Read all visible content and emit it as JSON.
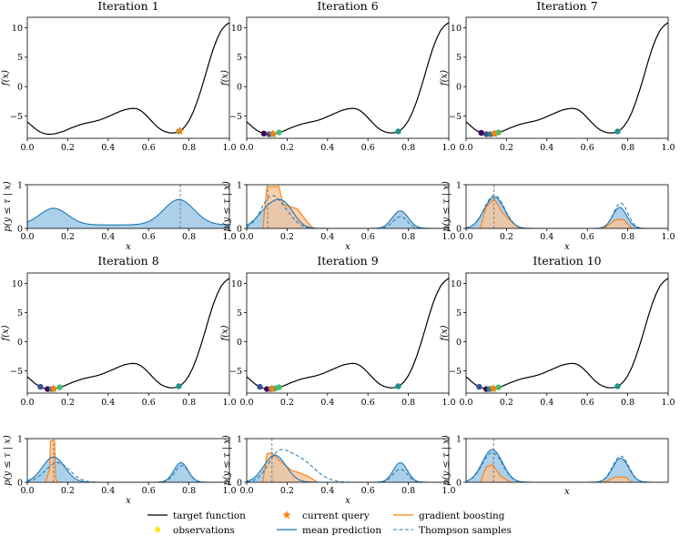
{
  "chart_data": {
    "type": "line",
    "x_range": [
      0.0,
      1.0
    ],
    "x_ticks": [
      "0.0",
      "0.2",
      "0.4",
      "0.6",
      "0.8",
      "1.0"
    ],
    "f_label": "f(x)",
    "f_ticks": [
      "−5",
      "0",
      "5",
      "10"
    ],
    "f_ylim": [
      -8.8,
      11.8
    ],
    "p_label": "p(y ≤ τ | x)",
    "p_ticks": [
      "0",
      "1"
    ],
    "p_ylim": [
      0,
      1
    ],
    "xlabel": "x",
    "target_function": {
      "x": [
        0.0,
        0.02,
        0.04,
        0.06,
        0.08,
        0.1,
        0.12,
        0.14,
        0.16,
        0.18,
        0.2,
        0.22,
        0.24,
        0.26,
        0.28,
        0.3,
        0.32,
        0.34,
        0.36,
        0.38,
        0.4,
        0.42,
        0.44,
        0.46,
        0.48,
        0.5,
        0.52,
        0.54,
        0.56,
        0.58,
        0.6,
        0.62,
        0.64,
        0.66,
        0.68,
        0.7,
        0.72,
        0.74,
        0.76,
        0.78,
        0.8,
        0.82,
        0.84,
        0.86,
        0.88,
        0.9,
        0.92,
        0.94,
        0.96,
        0.98,
        1.0
      ],
      "y": [
        -6.0,
        -6.6,
        -7.2,
        -7.65,
        -7.95,
        -8.1,
        -8.1,
        -8.0,
        -7.8,
        -7.6,
        -7.3,
        -7.0,
        -6.75,
        -6.5,
        -6.3,
        -6.15,
        -6.0,
        -5.85,
        -5.65,
        -5.4,
        -5.1,
        -4.8,
        -4.5,
        -4.2,
        -3.95,
        -3.8,
        -3.7,
        -3.75,
        -4.05,
        -4.6,
        -5.3,
        -6.05,
        -6.75,
        -7.3,
        -7.65,
        -7.85,
        -7.9,
        -7.8,
        -7.45,
        -6.8,
        -5.8,
        -4.4,
        -2.6,
        -0.5,
        1.8,
        4.2,
        6.4,
        8.2,
        9.6,
        10.4,
        10.9
      ]
    },
    "panels": [
      {
        "title": "Iteration 1",
        "observations": [
          0.75
        ],
        "obs_colors": [
          "#43bf71"
        ],
        "current_query": 0.755,
        "query_line": 0.757,
        "mean_prediction": [
          [
            0.13,
            0.07,
            0.38
          ],
          [
            0.75,
            0.075,
            0.58
          ]
        ],
        "mean_base": 0.08,
        "thompson": [],
        "gradient": []
      },
      {
        "title": "Iteration 6",
        "observations": [
          0.085,
          0.11,
          0.13,
          0.16,
          0.75
        ],
        "obs_colors": [
          "#440154",
          "#3b528b",
          "#2a788e",
          "#43bf71",
          "#21918c"
        ],
        "current_query": 0.13,
        "query_line": 0.104,
        "mean_prediction": [
          [
            0.13,
            0.065,
            0.55
          ],
          [
            0.2,
            0.045,
            0.25
          ],
          [
            0.76,
            0.04,
            0.4
          ]
        ],
        "mean_base": 0.0,
        "thompson": [
          [
            0.12,
            0.05,
            0.7
          ],
          [
            0.2,
            0.045,
            0.22
          ],
          [
            0.76,
            0.035,
            0.27
          ]
        ],
        "gradient": [
          [
            0.08,
            0.0
          ],
          [
            0.1,
            0.95
          ],
          [
            0.16,
            0.96
          ],
          [
            0.18,
            0.55
          ],
          [
            0.25,
            0.45
          ],
          [
            0.3,
            0.15
          ],
          [
            0.33,
            0.0
          ]
        ]
      },
      {
        "title": "Iteration 7",
        "observations": [
          0.075,
          0.1,
          0.12,
          0.14,
          0.16,
          0.75
        ],
        "obs_colors": [
          "#440154",
          "#3b528b",
          "#2a788e",
          "#21918c",
          "#43bf71",
          "#21918c"
        ],
        "current_query": 0.14,
        "query_line": 0.138,
        "mean_prediction": [
          [
            0.14,
            0.05,
            0.72
          ],
          [
            0.76,
            0.035,
            0.48
          ]
        ],
        "mean_base": 0.0,
        "thompson": [
          [
            0.14,
            0.05,
            0.76
          ],
          [
            0.765,
            0.035,
            0.58
          ]
        ],
        "gradient": [
          [
            0.07,
            0.0
          ],
          [
            0.1,
            0.5
          ],
          [
            0.14,
            0.68
          ],
          [
            0.18,
            0.35
          ],
          [
            0.25,
            0.05
          ],
          [
            0.28,
            0.0
          ],
          [
            0.68,
            0.0
          ],
          [
            0.74,
            0.2
          ],
          [
            0.78,
            0.2
          ],
          [
            0.82,
            0.0
          ]
        ]
      },
      {
        "title": "Iteration 8",
        "observations": [
          0.065,
          0.1,
          0.12,
          0.13,
          0.16,
          0.75
        ],
        "obs_colors": [
          "#3b528b",
          "#440154",
          "#2a788e",
          "#21918c",
          "#43bf71",
          "#21918c"
        ],
        "current_query": 0.13,
        "query_line": 0.13,
        "mean_prediction": [
          [
            0.13,
            0.055,
            0.58
          ],
          [
            0.76,
            0.035,
            0.45
          ]
        ],
        "mean_base": 0.0,
        "thompson": [
          [
            0.15,
            0.06,
            0.45
          ],
          [
            0.765,
            0.035,
            0.38
          ]
        ],
        "gradient": [
          [
            0.09,
            0.0
          ],
          [
            0.11,
            0.3
          ],
          [
            0.115,
            0.95
          ],
          [
            0.135,
            0.95
          ],
          [
            0.14,
            0.1
          ],
          [
            0.15,
            0.0
          ]
        ]
      },
      {
        "title": "Iteration 9",
        "observations": [
          0.065,
          0.1,
          0.12,
          0.13,
          0.14,
          0.16,
          0.75
        ],
        "obs_colors": [
          "#3b528b",
          "#440154",
          "#2a788e",
          "#21918c",
          "#35b779",
          "#43bf71",
          "#21918c"
        ],
        "current_query": 0.125,
        "query_line": 0.125,
        "mean_prediction": [
          [
            0.14,
            0.055,
            0.62
          ],
          [
            0.76,
            0.035,
            0.45
          ]
        ],
        "mean_base": 0.0,
        "thompson": [
          [
            0.15,
            0.05,
            0.45
          ],
          [
            0.25,
            0.08,
            0.55
          ],
          [
            0.76,
            0.035,
            0.3
          ]
        ],
        "gradient": [
          [
            0.08,
            0.0
          ],
          [
            0.1,
            0.65
          ],
          [
            0.125,
            0.68
          ],
          [
            0.16,
            0.5
          ],
          [
            0.22,
            0.28
          ],
          [
            0.3,
            0.15
          ],
          [
            0.35,
            0.0
          ]
        ]
      },
      {
        "title": "Iteration 10",
        "observations": [
          0.065,
          0.1,
          0.115,
          0.125,
          0.135,
          0.16,
          0.75
        ],
        "obs_colors": [
          "#3b528b",
          "#440154",
          "#2a788e",
          "#21918c",
          "#35b779",
          "#43bf71",
          "#21918c"
        ],
        "current_query": 0.135,
        "query_line": 0.136,
        "mean_prediction": [
          [
            0.13,
            0.05,
            0.75
          ],
          [
            0.765,
            0.04,
            0.55
          ]
        ],
        "mean_base": 0.0,
        "thompson": [
          [
            0.13,
            0.05,
            0.68
          ],
          [
            0.765,
            0.04,
            0.6
          ]
        ],
        "gradient": [
          [
            0.07,
            0.0
          ],
          [
            0.1,
            0.35
          ],
          [
            0.13,
            0.4
          ],
          [
            0.17,
            0.15
          ],
          [
            0.22,
            0.0
          ],
          [
            0.68,
            0.0
          ],
          [
            0.74,
            0.12
          ],
          [
            0.79,
            0.12
          ],
          [
            0.82,
            0.0
          ]
        ]
      }
    ],
    "legend": [
      {
        "label": "target function",
        "style": "line",
        "color": "#000000"
      },
      {
        "label": "current query",
        "style": "star",
        "color": "#ff7f0e"
      },
      {
        "label": "gradient boosting",
        "style": "line",
        "color": "#ff7f0e"
      },
      {
        "label": "observations",
        "style": "dot",
        "color": "#fde725"
      },
      {
        "label": "mean prediction",
        "style": "line",
        "color": "#1f77b4"
      },
      {
        "label": "Thompson samples",
        "style": "dashed",
        "color": "#1f77b4"
      }
    ],
    "colors": {
      "blue": "#1f77b4",
      "blue_fill": "#9ec8e6",
      "orange": "#ff7f0e",
      "orange_fill": "#f9c49a",
      "query_line": "#808080"
    }
  }
}
